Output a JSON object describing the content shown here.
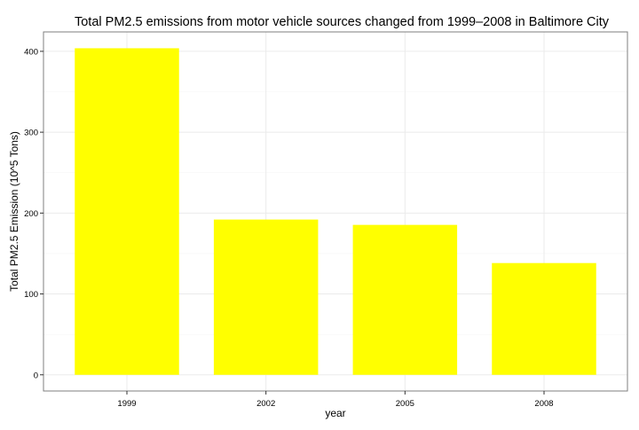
{
  "chart_data": {
    "type": "bar",
    "title": "Total PM2.5 emissions from motor vehicle sources changed from 1999–2008 in Baltimore City",
    "xlabel": "year",
    "ylabel": "Total PM2.5 Emission (10^5 Tons)",
    "categories": [
      "1999",
      "2002",
      "2005",
      "2008"
    ],
    "values": [
      403.8,
      192.0,
      185.4,
      138.2
    ],
    "ylim": [
      -20,
      424
    ],
    "yticks": [
      0,
      100,
      200,
      300,
      400
    ],
    "ytick_labels": [
      "0",
      "100",
      "200",
      "300",
      "400"
    ],
    "grid": true,
    "bar_color": "#FFFF00",
    "grid_color": "#EBEBEB",
    "panel_border_color": "#7F7F7F"
  }
}
